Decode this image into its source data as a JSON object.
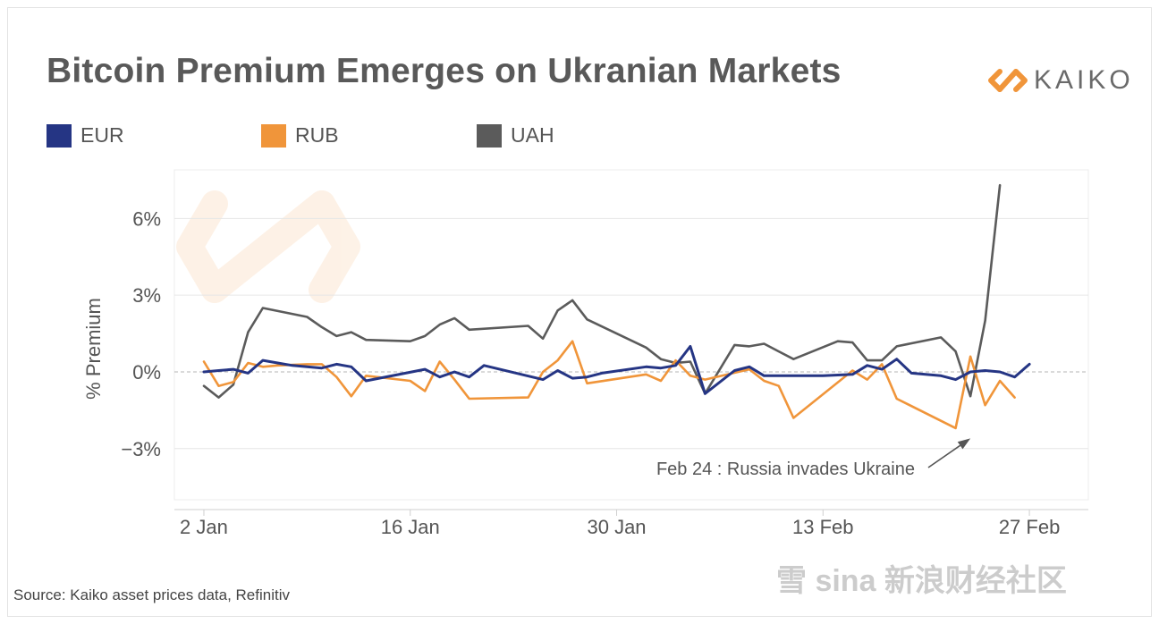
{
  "header": {
    "title": "Bitcoin Premium Emerges on Ukranian Markets",
    "logo_text": "KAIKO"
  },
  "footer": {
    "source": "Source: Kaiko asset prices data, Refinitiv",
    "watermark": "雪 sina 新浪财经社区"
  },
  "colors": {
    "EUR": "#253584",
    "RUB": "#f0953a",
    "UAH": "#5b5b5b",
    "grid": "#e6e6e6",
    "logo_accent": "#f0953a"
  },
  "chart_data": {
    "type": "line",
    "title": "Bitcoin Premium Emerges on Ukranian Markets",
    "xlabel": "",
    "ylabel": "% Premium",
    "x_ticks": [
      {
        "date": "2022-01-02",
        "label": "2 Jan"
      },
      {
        "date": "2022-01-16",
        "label": "16 Jan"
      },
      {
        "date": "2022-01-30",
        "label": "30 Jan"
      },
      {
        "date": "2022-02-13",
        "label": "13 Feb"
      },
      {
        "date": "2022-02-27",
        "label": "27 Feb"
      }
    ],
    "y_ticks": [
      {
        "value": 6,
        "label": "6%"
      },
      {
        "value": 3,
        "label": "3%"
      },
      {
        "value": 0,
        "label": "0%"
      },
      {
        "value": -3,
        "label": "−3%"
      }
    ],
    "xlim": [
      "2021-12-31",
      "2022-03-03"
    ],
    "ylim": [
      -5,
      7.9
    ],
    "grid": "horizontal",
    "legend_position": "top",
    "series": [
      {
        "name": "EUR",
        "points": [
          [
            "2022-01-02",
            0.0
          ],
          [
            "2022-01-03",
            0.05
          ],
          [
            "2022-01-04",
            0.1
          ],
          [
            "2022-01-05",
            -0.05
          ],
          [
            "2022-01-06",
            0.45
          ],
          [
            "2022-01-07",
            0.35
          ],
          [
            "2022-01-08",
            0.25
          ],
          [
            "2022-01-09",
            0.2
          ],
          [
            "2022-01-10",
            0.15
          ],
          [
            "2022-01-11",
            0.3
          ],
          [
            "2022-01-12",
            0.2
          ],
          [
            "2022-01-13",
            -0.35
          ],
          [
            "2022-01-17",
            0.1
          ],
          [
            "2022-01-18",
            -0.2
          ],
          [
            "2022-01-19",
            0.0
          ],
          [
            "2022-01-20",
            -0.2
          ],
          [
            "2022-01-21",
            0.25
          ],
          [
            "2022-01-25",
            -0.3
          ],
          [
            "2022-01-26",
            0.05
          ],
          [
            "2022-01-27",
            -0.25
          ],
          [
            "2022-01-28",
            -0.2
          ],
          [
            "2022-01-29",
            -0.05
          ],
          [
            "2022-02-01",
            0.2
          ],
          [
            "2022-02-02",
            0.15
          ],
          [
            "2022-02-03",
            0.25
          ],
          [
            "2022-02-04",
            1.0
          ],
          [
            "2022-02-05",
            -0.85
          ],
          [
            "2022-02-07",
            0.05
          ],
          [
            "2022-02-08",
            0.2
          ],
          [
            "2022-02-09",
            -0.15
          ],
          [
            "2022-02-13",
            -0.15
          ],
          [
            "2022-02-15",
            -0.1
          ],
          [
            "2022-02-16",
            0.25
          ],
          [
            "2022-02-17",
            0.1
          ],
          [
            "2022-02-18",
            0.5
          ],
          [
            "2022-02-19",
            -0.05
          ],
          [
            "2022-02-21",
            -0.15
          ],
          [
            "2022-02-22",
            -0.3
          ],
          [
            "2022-02-23",
            0.0
          ],
          [
            "2022-02-24",
            0.05
          ],
          [
            "2022-02-25",
            0.0
          ],
          [
            "2022-02-26",
            -0.2
          ],
          [
            "2022-02-27",
            0.3
          ]
        ]
      },
      {
        "name": "RUB",
        "points": [
          [
            "2022-01-02",
            0.4
          ],
          [
            "2022-01-03",
            -0.55
          ],
          [
            "2022-01-04",
            -0.4
          ],
          [
            "2022-01-05",
            0.35
          ],
          [
            "2022-01-06",
            0.2
          ],
          [
            "2022-01-07",
            0.25
          ],
          [
            "2022-01-09",
            0.3
          ],
          [
            "2022-01-10",
            0.3
          ],
          [
            "2022-01-11",
            -0.2
          ],
          [
            "2022-01-12",
            -0.95
          ],
          [
            "2022-01-13",
            -0.15
          ],
          [
            "2022-01-16",
            -0.35
          ],
          [
            "2022-01-17",
            -0.75
          ],
          [
            "2022-01-18",
            0.4
          ],
          [
            "2022-01-19",
            -0.3
          ],
          [
            "2022-01-20",
            -1.05
          ],
          [
            "2022-01-24",
            -1.0
          ],
          [
            "2022-01-25",
            0.0
          ],
          [
            "2022-01-26",
            0.45
          ],
          [
            "2022-01-27",
            1.2
          ],
          [
            "2022-01-28",
            -0.45
          ],
          [
            "2022-02-01",
            -0.1
          ],
          [
            "2022-02-02",
            -0.35
          ],
          [
            "2022-02-03",
            0.45
          ],
          [
            "2022-02-04",
            -0.15
          ],
          [
            "2022-02-05",
            -0.3
          ],
          [
            "2022-02-08",
            0.1
          ],
          [
            "2022-02-09",
            -0.35
          ],
          [
            "2022-02-10",
            -0.55
          ],
          [
            "2022-02-11",
            -1.8
          ],
          [
            "2022-02-15",
            0.05
          ],
          [
            "2022-02-16",
            -0.3
          ],
          [
            "2022-02-17",
            0.3
          ],
          [
            "2022-02-18",
            -1.05
          ],
          [
            "2022-02-22",
            -2.2
          ],
          [
            "2022-02-23",
            0.6
          ],
          [
            "2022-02-24",
            -1.3
          ],
          [
            "2022-02-25",
            -0.35
          ],
          [
            "2022-02-26",
            -1.0
          ]
        ]
      },
      {
        "name": "UAH",
        "points": [
          [
            "2022-01-02",
            -0.55
          ],
          [
            "2022-01-03",
            -1.0
          ],
          [
            "2022-01-04",
            -0.5
          ],
          [
            "2022-01-05",
            1.55
          ],
          [
            "2022-01-06",
            2.5
          ],
          [
            "2022-01-09",
            2.15
          ],
          [
            "2022-01-10",
            1.75
          ],
          [
            "2022-01-11",
            1.4
          ],
          [
            "2022-01-12",
            1.55
          ],
          [
            "2022-01-13",
            1.25
          ],
          [
            "2022-01-16",
            1.2
          ],
          [
            "2022-01-17",
            1.4
          ],
          [
            "2022-01-18",
            1.85
          ],
          [
            "2022-01-19",
            2.1
          ],
          [
            "2022-01-20",
            1.65
          ],
          [
            "2022-01-24",
            1.8
          ],
          [
            "2022-01-25",
            1.3
          ],
          [
            "2022-01-26",
            2.4
          ],
          [
            "2022-01-27",
            2.8
          ],
          [
            "2022-01-28",
            2.05
          ],
          [
            "2022-02-01",
            0.95
          ],
          [
            "2022-02-02",
            0.5
          ],
          [
            "2022-02-03",
            0.35
          ],
          [
            "2022-02-04",
            0.4
          ],
          [
            "2022-02-05",
            -0.85
          ],
          [
            "2022-02-07",
            1.05
          ],
          [
            "2022-02-08",
            1.0
          ],
          [
            "2022-02-09",
            1.1
          ],
          [
            "2022-02-10",
            0.8
          ],
          [
            "2022-02-11",
            0.5
          ],
          [
            "2022-02-14",
            1.2
          ],
          [
            "2022-02-15",
            1.15
          ],
          [
            "2022-02-16",
            0.45
          ],
          [
            "2022-02-17",
            0.45
          ],
          [
            "2022-02-18",
            1.0
          ],
          [
            "2022-02-21",
            1.35
          ],
          [
            "2022-02-22",
            0.8
          ],
          [
            "2022-02-23",
            -0.95
          ],
          [
            "2022-02-24",
            2.0
          ],
          [
            "2022-02-25",
            7.3
          ]
        ]
      }
    ],
    "annotations": [
      {
        "text": "Feb 24 : Russia invades Ukraine",
        "points_to": [
          "2022-02-23",
          -2.6
        ]
      }
    ]
  }
}
